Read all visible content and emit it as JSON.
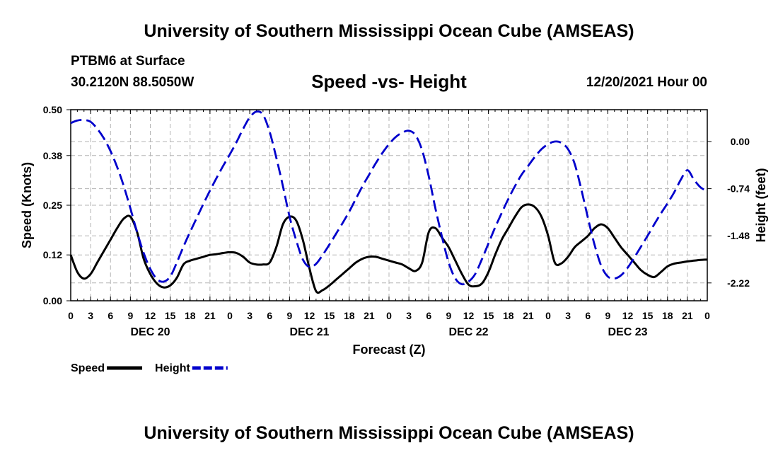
{
  "header": {
    "title": "University of Southern Mississippi Ocean Cube (AMSEAS)",
    "station": "PTBM6 at Surface",
    "coords": "30.2120N  88.5050W",
    "subtitle": "Speed -vs- Height",
    "datetime": "12/20/2021 Hour 00"
  },
  "footer": {
    "title": "University of Southern Mississippi Ocean Cube (AMSEAS)"
  },
  "chart_data": {
    "type": "line",
    "xlabel": "Forecast (Z)",
    "ylabel": "Speed (Knots)",
    "y2label": "Height (feet)",
    "x_range_hours": [
      0,
      96
    ],
    "x_ticks": [
      "0",
      "3",
      "6",
      "9",
      "12",
      "15",
      "18",
      "21",
      "0",
      "3",
      "6",
      "9",
      "12",
      "15",
      "18",
      "21",
      "0",
      "3",
      "6",
      "9",
      "12",
      "15",
      "18",
      "21",
      "0",
      "3",
      "6",
      "9",
      "12",
      "15",
      "18",
      "21",
      "0"
    ],
    "day_labels": [
      "DEC 20",
      "DEC 21",
      "DEC 22",
      "DEC 23"
    ],
    "ylim": [
      0,
      0.5
    ],
    "y_ticks": [
      "0.00",
      "0.12",
      "0.25",
      "0.38",
      "0.50"
    ],
    "y2lim": [
      -2.5,
      0.5
    ],
    "y2_ticks": [
      "0.00",
      "-0.74",
      "-1.48",
      "-2.22"
    ],
    "grid": true,
    "legend_position": "bottom-left",
    "series": [
      {
        "name": "Speed",
        "color": "#000000",
        "style": "solid",
        "axis": "left",
        "hours": [
          0,
          1,
          2,
          3,
          4,
          5,
          6,
          7,
          8,
          9,
          10,
          11,
          12,
          13,
          14,
          15,
          16,
          17,
          18,
          19,
          20,
          21,
          22,
          23,
          24,
          25,
          26,
          27,
          28,
          29,
          30,
          31,
          32,
          33,
          34,
          35,
          36,
          37,
          38,
          39,
          40,
          41,
          42,
          43,
          44,
          45,
          46,
          47,
          48,
          49,
          50,
          51,
          52,
          53,
          54,
          55,
          56,
          57,
          58,
          59,
          60,
          61,
          62,
          63,
          64,
          65,
          66,
          67,
          68,
          69,
          70,
          71,
          72,
          73,
          74,
          75,
          76,
          77,
          78,
          79,
          80,
          81,
          82,
          83,
          84,
          85,
          86,
          87,
          88,
          89,
          90,
          91,
          92,
          93,
          94,
          95,
          96
        ],
        "values": [
          0.12,
          0.075,
          0.058,
          0.07,
          0.1,
          0.13,
          0.16,
          0.19,
          0.215,
          0.22,
          0.18,
          0.11,
          0.07,
          0.045,
          0.035,
          0.04,
          0.06,
          0.095,
          0.105,
          0.11,
          0.115,
          0.12,
          0.122,
          0.125,
          0.127,
          0.125,
          0.115,
          0.1,
          0.095,
          0.095,
          0.1,
          0.14,
          0.2,
          0.22,
          0.21,
          0.16,
          0.085,
          0.025,
          0.028,
          0.04,
          0.055,
          0.07,
          0.085,
          0.1,
          0.11,
          0.115,
          0.115,
          0.11,
          0.105,
          0.1,
          0.095,
          0.085,
          0.078,
          0.1,
          0.18,
          0.19,
          0.165,
          0.14,
          0.105,
          0.07,
          0.042,
          0.038,
          0.045,
          0.075,
          0.12,
          0.16,
          0.19,
          0.22,
          0.245,
          0.252,
          0.245,
          0.22,
          0.17,
          0.1,
          0.098,
          0.115,
          0.14,
          0.155,
          0.17,
          0.19,
          0.2,
          0.19,
          0.165,
          0.14,
          0.12,
          0.1,
          0.08,
          0.068,
          0.062,
          0.075,
          0.09,
          0.097,
          0.1,
          0.103,
          0.105,
          0.107,
          0.108
        ]
      },
      {
        "name": "Height",
        "color": "#0000cc",
        "style": "dashed",
        "axis": "right",
        "hours": [
          0,
          1,
          2,
          3,
          4,
          5,
          6,
          7,
          8,
          9,
          10,
          11,
          12,
          13,
          14,
          15,
          16,
          17,
          18,
          19,
          20,
          21,
          22,
          23,
          24,
          25,
          26,
          27,
          28,
          29,
          30,
          31,
          32,
          33,
          34,
          35,
          36,
          37,
          38,
          39,
          40,
          41,
          42,
          43,
          44,
          45,
          46,
          47,
          48,
          49,
          50,
          51,
          52,
          53,
          54,
          55,
          56,
          57,
          58,
          59,
          60,
          61,
          62,
          63,
          64,
          65,
          66,
          67,
          68,
          69,
          70,
          71,
          72,
          73,
          74,
          75,
          76,
          77,
          78,
          79,
          80,
          81,
          82,
          83,
          84,
          85,
          86,
          87,
          88,
          89,
          90,
          91,
          92,
          93,
          94,
          95,
          96
        ],
        "values": [
          0.29,
          0.33,
          0.34,
          0.31,
          0.2,
          0.05,
          -0.15,
          -0.4,
          -0.7,
          -1.05,
          -1.42,
          -1.75,
          -2.0,
          -2.16,
          -2.2,
          -2.12,
          -1.9,
          -1.65,
          -1.42,
          -1.2,
          -0.98,
          -0.77,
          -0.57,
          -0.38,
          -0.2,
          -0.01,
          0.2,
          0.38,
          0.47,
          0.42,
          0.15,
          -0.25,
          -0.7,
          -1.18,
          -1.55,
          -1.85,
          -1.97,
          -1.92,
          -1.78,
          -1.62,
          -1.45,
          -1.28,
          -1.1,
          -0.9,
          -0.7,
          -0.52,
          -0.34,
          -0.18,
          -0.04,
          0.07,
          0.14,
          0.17,
          0.1,
          -0.14,
          -0.55,
          -1.05,
          -1.5,
          -1.9,
          -2.15,
          -2.24,
          -2.2,
          -2.08,
          -1.85,
          -1.6,
          -1.35,
          -1.12,
          -0.9,
          -0.7,
          -0.52,
          -0.38,
          -0.24,
          -0.12,
          -0.04,
          0.0,
          -0.02,
          -0.12,
          -0.35,
          -0.75,
          -1.2,
          -1.62,
          -1.95,
          -2.12,
          -2.15,
          -2.1,
          -1.98,
          -1.82,
          -1.65,
          -1.48,
          -1.3,
          -1.13,
          -0.97,
          -0.8,
          -0.6,
          -0.45,
          -0.6,
          -0.72,
          -0.78
        ]
      }
    ]
  }
}
